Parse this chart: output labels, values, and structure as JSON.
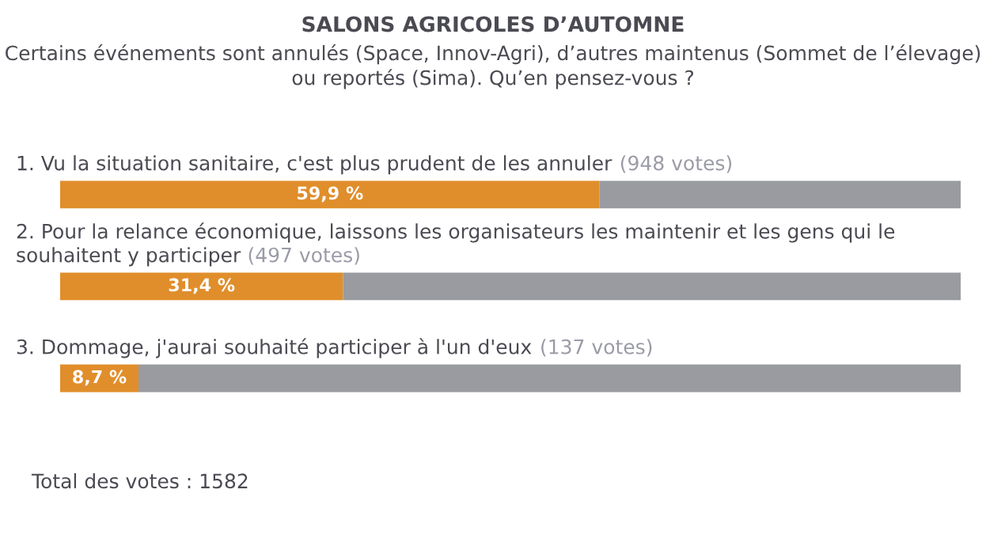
{
  "chart_data": {
    "type": "bar",
    "orientation": "horizontal",
    "stacked": true,
    "title": "SALONS AGRICOLES D’AUTOMNE",
    "subtitle": "Certains événements sont annulés (Space, Innov-Agri), d’autres maintenus (Sommet de l’élevage) ou reportés (Sima). Qu’en pensez-vous ?",
    "categories": [
      "1. Vu la situation sanitaire, c'est plus prudent de les annuler",
      "2. Pour la relance économique, laissons les organisateurs les maintenir et les gens qui le souhaitent y participer",
      "3. Dommage, j'aurai souhaité participer à l'un d'eux"
    ],
    "series": [
      {
        "color": "#e08e2b",
        "values": [
          59.9,
          31.4,
          8.7
        ],
        "value_labels": [
          "59,9 %",
          "31,4 %",
          "8,7 %"
        ]
      },
      {
        "color": "#9a9ba0",
        "values": [
          40.1,
          68.6,
          91.3
        ]
      }
    ],
    "xlim": [
      0,
      100
    ],
    "legend": false,
    "annotations": [
      "(948 votes)",
      "(497 votes)",
      "(137 votes)",
      "Total des votes : 1582"
    ]
  }
}
